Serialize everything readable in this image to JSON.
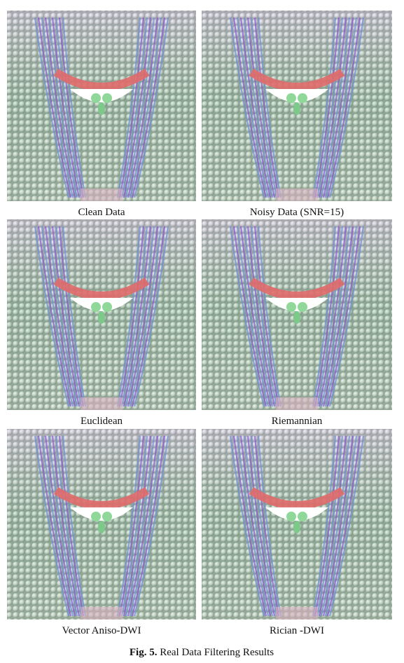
{
  "figure": {
    "panels": [
      {
        "caption": "Clean Data"
      },
      {
        "caption": "Noisy Data (SNR=15)"
      },
      {
        "caption": "Euclidean"
      },
      {
        "caption": "Riemannian"
      },
      {
        "caption": "Vector Aniso-DWI"
      },
      {
        "caption": "Rician -DWI"
      }
    ],
    "label": "Fig. 5.",
    "caption": "Real Data Filtering Results"
  }
}
